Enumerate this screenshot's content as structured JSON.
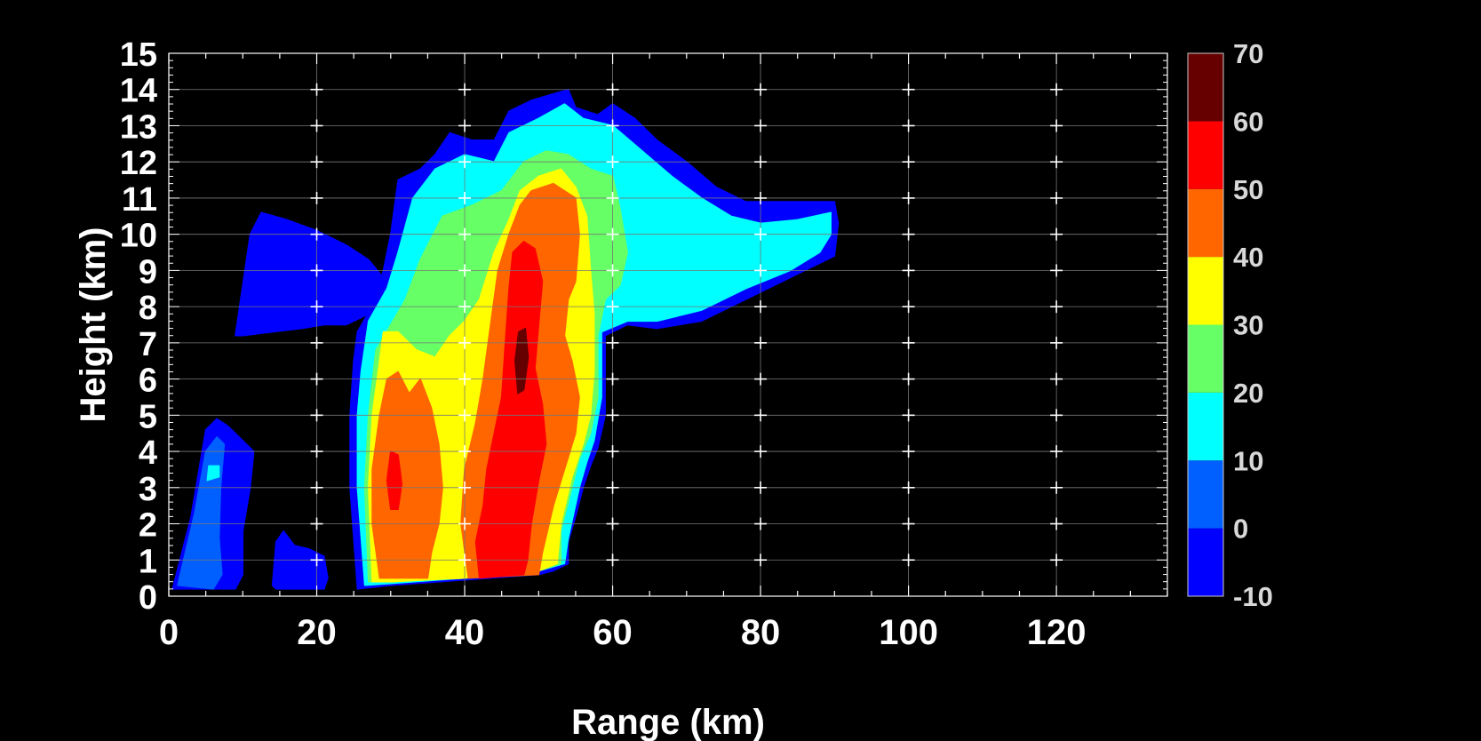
{
  "chart_data": {
    "type": "heatmap",
    "title": "",
    "xlabel": "Range (km)",
    "ylabel": "Height (km)",
    "xlim": [
      0,
      135
    ],
    "ylim": [
      0,
      15
    ],
    "x_ticks": [
      0,
      20,
      40,
      60,
      80,
      100,
      120
    ],
    "y_ticks": [
      0,
      1,
      2,
      3,
      4,
      5,
      6,
      7,
      8,
      9,
      10,
      11,
      12,
      13,
      14,
      15
    ],
    "grid": true,
    "background": "#000000",
    "colorbar": {
      "ticks": [
        -10,
        0,
        10,
        20,
        30,
        40,
        50,
        60,
        70
      ],
      "bins": [
        {
          "min": -10,
          "max": 0,
          "color": "#0000ff"
        },
        {
          "min": 0,
          "max": 10,
          "color": "#0060ff"
        },
        {
          "min": 10,
          "max": 20,
          "color": "#00ffff"
        },
        {
          "min": 20,
          "max": 30,
          "color": "#66ff66"
        },
        {
          "min": 30,
          "max": 40,
          "color": "#ffff00"
        },
        {
          "min": 40,
          "max": 50,
          "color": "#ff6600"
        },
        {
          "min": 50,
          "max": 60,
          "color": "#ff0000"
        },
        {
          "min": 60,
          "max": 70,
          "color": "#660000"
        }
      ]
    },
    "echo_regions": [
      {
        "name": "upper-anvil-west",
        "level": 0,
        "poly": [
          [
            9.0,
            7.2
          ],
          [
            11.0,
            10.0
          ],
          [
            12.5,
            10.6
          ],
          [
            16.0,
            10.4
          ],
          [
            20.0,
            10.1
          ],
          [
            24.0,
            9.7
          ],
          [
            27.0,
            9.3
          ],
          [
            29.0,
            8.8
          ],
          [
            30.0,
            8.2
          ],
          [
            28.0,
            7.9
          ],
          [
            26.0,
            7.7
          ],
          [
            24.0,
            7.5
          ],
          [
            21.0,
            7.5
          ],
          [
            18.0,
            7.4
          ],
          [
            14.0,
            7.3
          ],
          [
            10.0,
            7.2
          ]
        ]
      },
      {
        "name": "near-cell",
        "level": 0,
        "poly": [
          [
            0.5,
            0.2
          ],
          [
            3.0,
            2.2
          ],
          [
            5.0,
            4.6
          ],
          [
            6.5,
            4.9
          ],
          [
            8.0,
            4.7
          ],
          [
            9.5,
            4.4
          ],
          [
            11.5,
            4.0
          ],
          [
            11.0,
            3.0
          ],
          [
            10.0,
            1.8
          ],
          [
            10.0,
            0.6
          ],
          [
            9.0,
            0.2
          ]
        ]
      },
      {
        "name": "near-cell-core",
        "level": 1,
        "poly": [
          [
            1.2,
            0.3
          ],
          [
            3.5,
            2.3
          ],
          [
            5.0,
            4.0
          ],
          [
            6.5,
            4.4
          ],
          [
            7.5,
            4.2
          ],
          [
            7.0,
            3.0
          ],
          [
            6.8,
            1.6
          ],
          [
            7.2,
            0.6
          ],
          [
            6.0,
            0.2
          ]
        ]
      },
      {
        "name": "near-cell-spot",
        "level": 2,
        "poly": [
          [
            5.2,
            3.2
          ],
          [
            6.8,
            3.3
          ],
          [
            6.8,
            3.6
          ],
          [
            5.4,
            3.6
          ]
        ]
      },
      {
        "name": "ground-clutter",
        "level": 0,
        "poly": [
          [
            14.0,
            0.3
          ],
          [
            14.5,
            1.5
          ],
          [
            15.5,
            1.8
          ],
          [
            17.0,
            1.4
          ],
          [
            19.0,
            1.3
          ],
          [
            21.0,
            1.1
          ],
          [
            21.5,
            0.5
          ],
          [
            21.0,
            0.2
          ],
          [
            14.5,
            0.2
          ]
        ]
      },
      {
        "name": "storm-outer",
        "level": 0,
        "poly": [
          [
            25.5,
            0.2
          ],
          [
            24.5,
            3.0
          ],
          [
            24.5,
            5.0
          ],
          [
            25.0,
            6.5
          ],
          [
            25.5,
            7.3
          ],
          [
            28.0,
            8.2
          ],
          [
            29.0,
            9.0
          ],
          [
            30.0,
            10.0
          ],
          [
            31.0,
            11.5
          ],
          [
            34.0,
            11.8
          ],
          [
            36.0,
            12.2
          ],
          [
            38.0,
            12.8
          ],
          [
            41.0,
            12.6
          ],
          [
            44.0,
            12.6
          ],
          [
            46.0,
            13.4
          ],
          [
            49.0,
            13.7
          ],
          [
            54.0,
            14.0
          ],
          [
            55.0,
            13.5
          ],
          [
            58.0,
            13.3
          ],
          [
            60.0,
            13.6
          ],
          [
            63.0,
            13.2
          ],
          [
            66.0,
            12.6
          ],
          [
            70.0,
            12.0
          ],
          [
            74.0,
            11.3
          ],
          [
            78.0,
            10.9
          ],
          [
            82.0,
            10.9
          ],
          [
            86.0,
            10.9
          ],
          [
            90.0,
            10.9
          ],
          [
            90.5,
            10.3
          ],
          [
            90.0,
            9.4
          ],
          [
            84.0,
            8.8
          ],
          [
            78.0,
            8.2
          ],
          [
            72.0,
            7.6
          ],
          [
            66.0,
            7.4
          ],
          [
            62.0,
            7.5
          ],
          [
            59.0,
            7.2
          ],
          [
            59.0,
            6.0
          ],
          [
            59.0,
            5.0
          ],
          [
            58.0,
            4.1
          ],
          [
            57.0,
            3.6
          ],
          [
            56.0,
            3.0
          ],
          [
            55.0,
            2.2
          ],
          [
            54.0,
            1.5
          ],
          [
            54.0,
            0.9
          ],
          [
            52.0,
            0.7
          ],
          [
            50.0,
            0.6
          ],
          [
            40.0,
            0.45
          ],
          [
            30.0,
            0.3
          ]
        ]
      },
      {
        "name": "storm-cyan",
        "level": 2,
        "poly": [
          [
            26.5,
            0.3
          ],
          [
            25.5,
            3.0
          ],
          [
            25.5,
            5.0
          ],
          [
            26.0,
            6.2
          ],
          [
            27.0,
            7.6
          ],
          [
            29.5,
            8.5
          ],
          [
            31.0,
            9.5
          ],
          [
            33.0,
            11.0
          ],
          [
            36.0,
            11.8
          ],
          [
            40.0,
            12.2
          ],
          [
            44.0,
            12.0
          ],
          [
            46.0,
            12.8
          ],
          [
            50.0,
            13.2
          ],
          [
            53.5,
            13.6
          ],
          [
            56.0,
            13.2
          ],
          [
            60.0,
            13.0
          ],
          [
            64.0,
            12.3
          ],
          [
            68.0,
            11.6
          ],
          [
            72.0,
            11.0
          ],
          [
            76.0,
            10.5
          ],
          [
            80.0,
            10.3
          ],
          [
            85.0,
            10.4
          ],
          [
            89.5,
            10.6
          ],
          [
            89.5,
            10.0
          ],
          [
            88.0,
            9.5
          ],
          [
            84.0,
            9.0
          ],
          [
            78.0,
            8.5
          ],
          [
            72.0,
            7.9
          ],
          [
            66.0,
            7.6
          ],
          [
            62.0,
            7.6
          ],
          [
            58.5,
            7.3
          ],
          [
            58.5,
            5.5
          ],
          [
            57.5,
            4.3
          ],
          [
            56.5,
            3.7
          ],
          [
            55.5,
            3.0
          ],
          [
            54.0,
            1.6
          ],
          [
            53.5,
            0.9
          ],
          [
            50.0,
            0.7
          ],
          [
            40.0,
            0.5
          ],
          [
            30.0,
            0.35
          ]
        ]
      },
      {
        "name": "storm-green",
        "level": 3,
        "poly": [
          [
            27.0,
            0.4
          ],
          [
            26.5,
            3.0
          ],
          [
            27.0,
            5.0
          ],
          [
            28.0,
            6.8
          ],
          [
            30.0,
            7.5
          ],
          [
            32.0,
            8.2
          ],
          [
            34.0,
            9.3
          ],
          [
            37.0,
            10.5
          ],
          [
            41.0,
            10.8
          ],
          [
            45.0,
            11.2
          ],
          [
            48.0,
            12.0
          ],
          [
            51.0,
            12.3
          ],
          [
            54.0,
            12.2
          ],
          [
            57.0,
            11.8
          ],
          [
            60.0,
            11.6
          ],
          [
            61.0,
            10.7
          ],
          [
            62.0,
            9.5
          ],
          [
            61.0,
            8.6
          ],
          [
            59.0,
            8.2
          ],
          [
            58.0,
            7.2
          ],
          [
            58.0,
            5.5
          ],
          [
            57.0,
            4.5
          ],
          [
            55.5,
            3.8
          ],
          [
            54.5,
            3.0
          ],
          [
            53.0,
            1.8
          ],
          [
            53.0,
            0.9
          ],
          [
            50.0,
            0.7
          ],
          [
            40.0,
            0.5
          ],
          [
            30.0,
            0.4
          ]
        ]
      },
      {
        "name": "storm-yellow",
        "level": 4,
        "poly": [
          [
            27.5,
            0.4
          ],
          [
            27.0,
            3.0
          ],
          [
            27.5,
            5.0
          ],
          [
            28.5,
            6.5
          ],
          [
            29.0,
            7.3
          ],
          [
            31.0,
            7.3
          ],
          [
            33.5,
            6.8
          ],
          [
            36.0,
            6.6
          ],
          [
            38.0,
            7.2
          ],
          [
            40.0,
            7.6
          ],
          [
            42.0,
            8.2
          ],
          [
            44.0,
            9.5
          ],
          [
            46.0,
            10.4
          ],
          [
            47.5,
            11.2
          ],
          [
            50.0,
            11.6
          ],
          [
            53.0,
            11.8
          ],
          [
            55.0,
            11.3
          ],
          [
            56.5,
            10.5
          ],
          [
            57.0,
            9.0
          ],
          [
            57.5,
            7.8
          ],
          [
            57.5,
            6.2
          ],
          [
            57.0,
            5.0
          ],
          [
            56.0,
            4.2
          ],
          [
            54.5,
            3.3
          ],
          [
            53.0,
            2.0
          ],
          [
            52.5,
            0.9
          ],
          [
            50.0,
            0.7
          ],
          [
            40.0,
            0.5
          ],
          [
            30.0,
            0.4
          ]
        ]
      },
      {
        "name": "storm-orange-west",
        "level": 5,
        "poly": [
          [
            28.5,
            0.5
          ],
          [
            27.5,
            2.0
          ],
          [
            27.5,
            3.5
          ],
          [
            28.5,
            5.0
          ],
          [
            29.5,
            6.0
          ],
          [
            31.0,
            6.2
          ],
          [
            32.5,
            5.6
          ],
          [
            34.0,
            6.0
          ],
          [
            35.5,
            5.2
          ],
          [
            36.5,
            4.2
          ],
          [
            37.0,
            3.0
          ],
          [
            36.5,
            2.0
          ],
          [
            35.5,
            1.2
          ],
          [
            35.0,
            0.5
          ]
        ]
      },
      {
        "name": "storm-orange-east",
        "level": 5,
        "poly": [
          [
            40.5,
            0.5
          ],
          [
            39.5,
            2.0
          ],
          [
            40.0,
            3.5
          ],
          [
            41.5,
            4.8
          ],
          [
            42.5,
            6.0
          ],
          [
            43.5,
            7.5
          ],
          [
            44.5,
            9.0
          ],
          [
            46.0,
            10.0
          ],
          [
            47.5,
            10.8
          ],
          [
            49.0,
            11.2
          ],
          [
            52.0,
            11.4
          ],
          [
            55.0,
            11.0
          ],
          [
            55.5,
            10.0
          ],
          [
            55.0,
            8.7
          ],
          [
            54.0,
            8.2
          ],
          [
            53.5,
            7.2
          ],
          [
            54.5,
            6.5
          ],
          [
            55.5,
            5.5
          ],
          [
            55.0,
            4.5
          ],
          [
            53.5,
            3.5
          ],
          [
            52.0,
            2.5
          ],
          [
            50.5,
            1.2
          ],
          [
            50.0,
            0.6
          ]
        ]
      },
      {
        "name": "storm-red-core",
        "level": 6,
        "poly": [
          [
            42.0,
            0.5
          ],
          [
            41.5,
            1.5
          ],
          [
            42.5,
            2.5
          ],
          [
            43.0,
            3.5
          ],
          [
            44.0,
            4.5
          ],
          [
            45.0,
            5.5
          ],
          [
            45.5,
            7.0
          ],
          [
            46.0,
            8.5
          ],
          [
            46.5,
            9.5
          ],
          [
            48.0,
            9.8
          ],
          [
            49.5,
            9.6
          ],
          [
            50.5,
            8.7
          ],
          [
            50.0,
            7.5
          ],
          [
            49.5,
            6.3
          ],
          [
            50.5,
            5.3
          ],
          [
            51.0,
            4.2
          ],
          [
            50.0,
            3.2
          ],
          [
            49.0,
            2.0
          ],
          [
            48.5,
            1.0
          ],
          [
            48.0,
            0.6
          ]
        ]
      },
      {
        "name": "storm-red-west",
        "level": 6,
        "poly": [
          [
            30.0,
            2.4
          ],
          [
            29.5,
            3.2
          ],
          [
            30.0,
            4.0
          ],
          [
            31.0,
            3.9
          ],
          [
            31.5,
            3.1
          ],
          [
            31.0,
            2.4
          ]
        ]
      },
      {
        "name": "storm-max-core",
        "level": 7,
        "poly": [
          [
            47.2,
            5.6
          ],
          [
            46.8,
            6.5
          ],
          [
            47.3,
            7.3
          ],
          [
            48.2,
            7.4
          ],
          [
            48.6,
            6.6
          ],
          [
            48.0,
            5.7
          ]
        ]
      }
    ]
  }
}
